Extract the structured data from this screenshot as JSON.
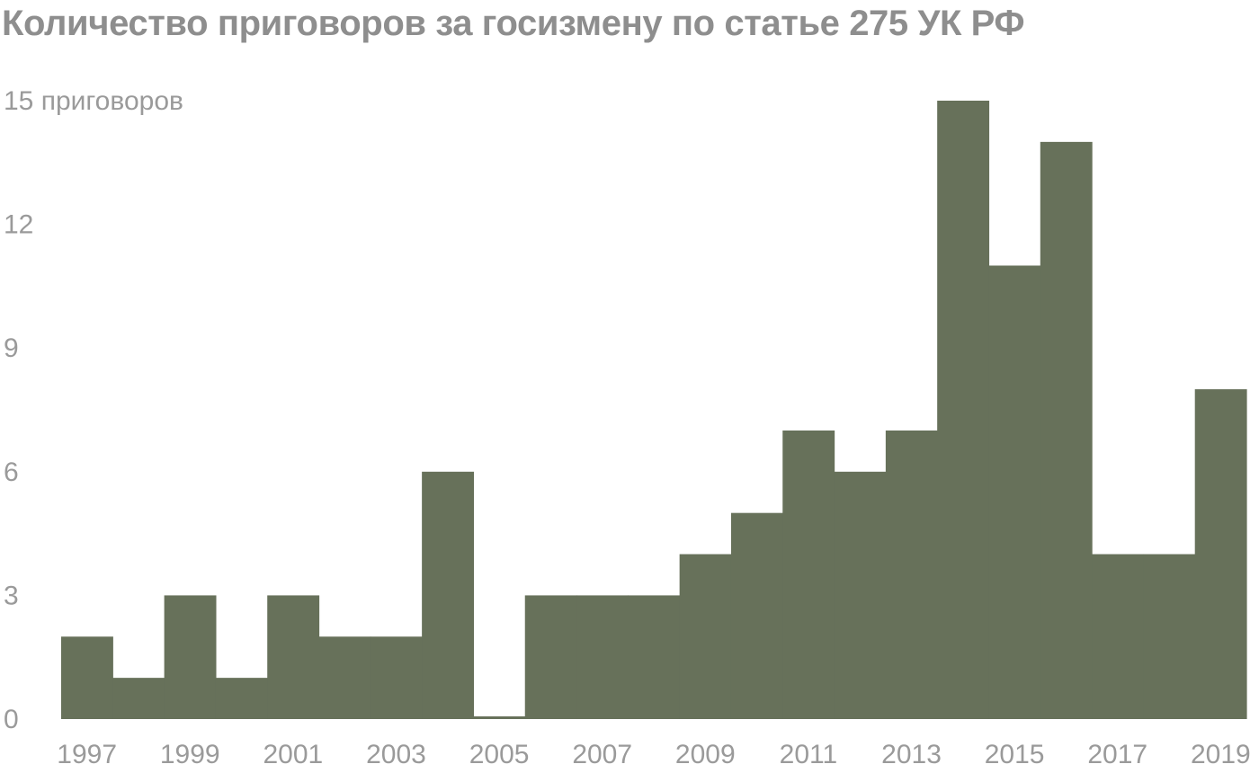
{
  "colors": {
    "bar": "#67715a",
    "text": "#9a9a9a",
    "title": "#8e8e8e"
  },
  "chart_data": {
    "type": "bar",
    "title": "Количество приговоров за госизмену по статье 275 УК РФ",
    "ylabel": "приговоров",
    "ylim": [
      0,
      15
    ],
    "y_ticks": [
      {
        "value": 0,
        "label": "0"
      },
      {
        "value": 3,
        "label": "3"
      },
      {
        "value": 6,
        "label": "6"
      },
      {
        "value": 9,
        "label": "9"
      },
      {
        "value": 12,
        "label": "12"
      },
      {
        "value": 15,
        "label": "15 приговоров"
      }
    ],
    "x_tick_labels": [
      "1997",
      "1999",
      "2001",
      "2003",
      "2005",
      "2007",
      "2009",
      "2011",
      "2013",
      "2015",
      "2017",
      "2019"
    ],
    "categories": [
      "1997",
      "1998",
      "1999",
      "2000",
      "2001",
      "2002",
      "2003",
      "2004",
      "2005",
      "2006",
      "2007",
      "2008",
      "2009",
      "2010",
      "2011",
      "2012",
      "2013",
      "2014",
      "2015",
      "2016",
      "2017",
      "2018",
      "2019"
    ],
    "values": [
      2,
      1,
      3,
      1,
      3,
      2,
      2,
      6,
      0,
      3,
      3,
      3,
      4,
      5,
      7,
      6,
      7,
      15,
      11,
      14,
      4,
      4,
      8
    ]
  }
}
